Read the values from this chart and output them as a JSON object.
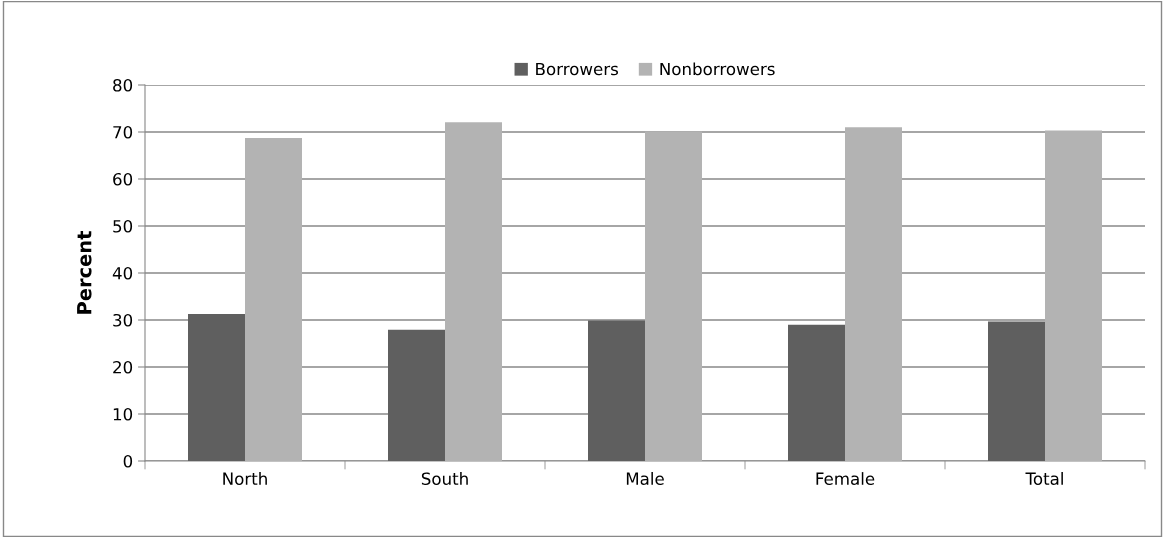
{
  "chart_data": {
    "type": "bar",
    "ylabel": "Percent",
    "categories": [
      "North",
      "South",
      "Male",
      "Female",
      "Total"
    ],
    "series": [
      {
        "name": "Borrowers",
        "color": "#5f5f5f",
        "values": [
          31.3,
          27.9,
          29.9,
          29.0,
          29.7
        ]
      },
      {
        "name": "Nonborrowers",
        "color": "#b3b3b3",
        "values": [
          68.7,
          72.1,
          70.1,
          71.0,
          70.3
        ]
      }
    ],
    "ylim": [
      0,
      80
    ],
    "yticks": [
      0,
      10,
      20,
      30,
      40,
      50,
      60,
      70,
      80
    ],
    "grid": "y",
    "legend": "top"
  }
}
